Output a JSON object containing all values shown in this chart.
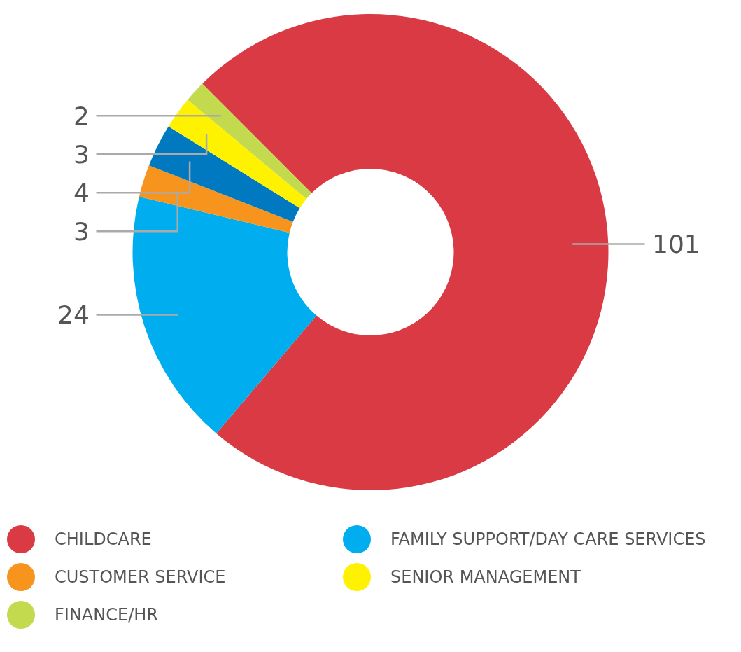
{
  "chart_data": {
    "type": "donut",
    "categories": [
      "CHILDCARE",
      "FAMILY SUPPORT/DAY CARE SERVICES",
      "CUSTOMER SERVICE",
      null,
      "SENIOR MANAGEMENT",
      "FINANCE/HR"
    ],
    "values": [
      101,
      24,
      3,
      4,
      3,
      2
    ],
    "colors": [
      "#d93a44",
      "#00aeef",
      "#f7941d",
      "#0079c1",
      "#fff200",
      "#c3d94e"
    ],
    "data_labels": true,
    "legend": "bottom"
  }
}
